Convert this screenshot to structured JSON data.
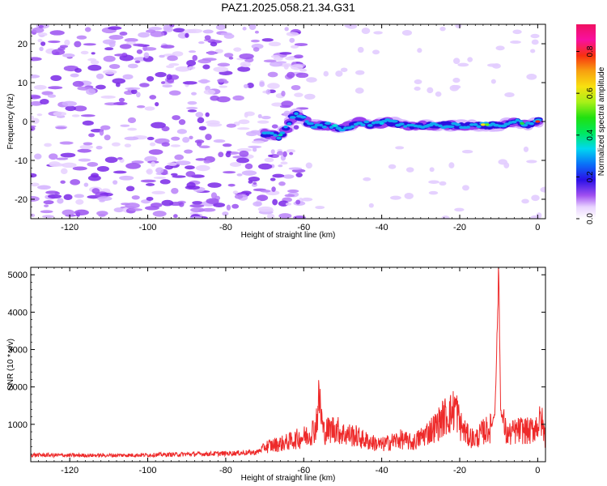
{
  "colors": {
    "snr_line": "#ee2a2a",
    "noise_purple": "#8a3df0",
    "axis": "#000000"
  },
  "chart_data": [
    {
      "type": "heatmap",
      "title": "PAZ1.2025.058.21.34.G31",
      "xlabel": "Height of straight line (km)",
      "ylabel": "Frequency (Hz)",
      "xlim": [
        -130,
        2
      ],
      "ylim": [
        -25,
        25
      ],
      "x_ticks": [
        "-120",
        "-100",
        "-80",
        "-60",
        "-40",
        "-20",
        "0"
      ],
      "y_ticks": [
        "-20",
        "-10",
        "0",
        "10",
        "20"
      ],
      "colorbar": {
        "label": "Normalized spectral amplitude",
        "range": [
          0,
          0.93
        ],
        "ticks": [
          "0.0",
          "0.2",
          "0.4",
          "0.6",
          "0.8"
        ],
        "colormap": "gist_ncar-like"
      },
      "signal_track": {
        "description_points_x_km": [
          -70,
          -66,
          -62,
          -58,
          -54,
          -50,
          -46,
          -42,
          -38,
          -34,
          -30,
          -26,
          -22,
          -18,
          -14,
          -10,
          -6,
          -2,
          0
        ],
        "description_points_freq_hz": [
          -3,
          -4,
          2,
          -1,
          -1,
          -2,
          0,
          -1,
          0,
          -1,
          -1,
          -1,
          -1,
          -1,
          -1,
          -1,
          0,
          -1,
          0
        ]
      }
    },
    {
      "type": "line",
      "xlabel": "Height of straight line (km)",
      "ylabel": "SNR (10 * v/v)",
      "xlim": [
        -130,
        2
      ],
      "ylim": [
        0,
        5200
      ],
      "x_ticks": [
        "-120",
        "-100",
        "-80",
        "-60",
        "-40",
        "-20",
        "0"
      ],
      "y_ticks": [
        "1000",
        "2000",
        "3000",
        "4000",
        "5000"
      ],
      "series": [
        {
          "x": [
            -130,
            -120,
            -110,
            -100,
            -90,
            -80,
            -72,
            -70,
            -65,
            -62,
            -59,
            -57,
            -56,
            -55,
            -52,
            -50,
            -47,
            -45,
            -42,
            -40,
            -37,
            -35,
            -32,
            -30,
            -28,
            -26,
            -24,
            -22,
            -21,
            -20,
            -18,
            -16,
            -14,
            -12,
            -11,
            -10.5,
            -10,
            -9.5,
            -8,
            -6,
            -4,
            -2,
            -1,
            0,
            1,
            2
          ],
          "y": [
            180,
            170,
            170,
            180,
            200,
            220,
            250,
            400,
            500,
            600,
            700,
            900,
            1700,
            800,
            900,
            750,
            700,
            600,
            500,
            450,
            550,
            600,
            500,
            650,
            800,
            950,
            1200,
            1300,
            1500,
            1000,
            700,
            600,
            800,
            900,
            1300,
            3000,
            5200,
            1400,
            700,
            800,
            850,
            800,
            900,
            1000,
            1100,
            600
          ]
        }
      ]
    }
  ]
}
